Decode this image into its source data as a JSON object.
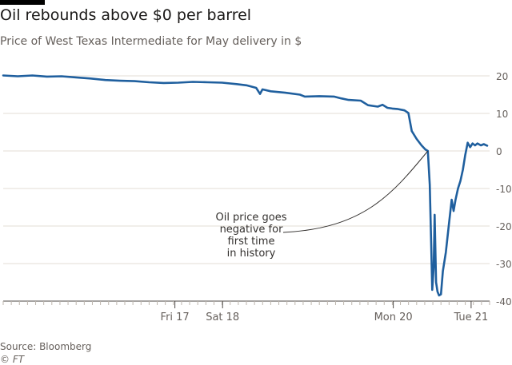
{
  "header": {
    "title": "Oil rebounds above $0 per barrel",
    "subtitle": "Price of West Texas Intermediate for May delivery in $"
  },
  "footer": {
    "source": "Source: Bloomberg",
    "copyright": "© FT"
  },
  "colors": {
    "line": "#1f5f9e",
    "grid": "#e3ddd6",
    "text": "#66605c",
    "annotation": "#33302e"
  },
  "chart_data": {
    "type": "line",
    "title": "Oil rebounds above $0 per barrel",
    "subtitle": "Price of West Texas Intermediate for May delivery in $",
    "ylim": [
      -40,
      20
    ],
    "yticks": [
      20,
      10,
      0,
      -10,
      -20,
      -30,
      -40
    ],
    "y_axis_side": "right",
    "grid": true,
    "xlim": [
      0,
      100
    ],
    "x_tick_labels": [
      {
        "x": 35.3,
        "label": "Fri 17"
      },
      {
        "x": 45.1,
        "label": "Sat 18"
      },
      {
        "x": 80.2,
        "label": "Mon 20"
      },
      {
        "x": 96.2,
        "label": "Tue 21"
      }
    ],
    "annotation": {
      "text": [
        "Oil price goes",
        "negative for",
        "first time",
        "in history"
      ],
      "points_to": {
        "x": 87.3,
        "y": 0
      }
    },
    "series": [
      {
        "values": [
          [
            0,
            20.1
          ],
          [
            3,
            19.9
          ],
          [
            6,
            20.1
          ],
          [
            9,
            19.8
          ],
          [
            12,
            19.9
          ],
          [
            15,
            19.6
          ],
          [
            18,
            19.3
          ],
          [
            21,
            18.9
          ],
          [
            24,
            18.7
          ],
          [
            27,
            18.6
          ],
          [
            30,
            18.3
          ],
          [
            33,
            18.1
          ],
          [
            36,
            18.2
          ],
          [
            39,
            18.4
          ],
          [
            42,
            18.3
          ],
          [
            45,
            18.2
          ],
          [
            48,
            17.8
          ],
          [
            50,
            17.5
          ],
          [
            52,
            16.8
          ],
          [
            52.8,
            15.2
          ],
          [
            53.3,
            16.4
          ],
          [
            55,
            15.9
          ],
          [
            58,
            15.5
          ],
          [
            61,
            15.0
          ],
          [
            62,
            14.5
          ],
          [
            65,
            14.6
          ],
          [
            68,
            14.5
          ],
          [
            69.5,
            14.0
          ],
          [
            71,
            13.6
          ],
          [
            73.5,
            13.4
          ],
          [
            75,
            12.2
          ],
          [
            76,
            12.0
          ],
          [
            77,
            11.8
          ],
          [
            78,
            12.3
          ],
          [
            79,
            11.5
          ],
          [
            80,
            11.3
          ],
          [
            81,
            11.2
          ],
          [
            82.5,
            10.8
          ],
          [
            83.3,
            10.1
          ],
          [
            84,
            5.3
          ],
          [
            85,
            3.2
          ],
          [
            86,
            1.5
          ],
          [
            86.8,
            0.4
          ],
          [
            87.3,
            0.0
          ],
          [
            87.7,
            -9.0
          ],
          [
            88.0,
            -25.0
          ],
          [
            88.2,
            -37.0
          ],
          [
            88.5,
            -31.0
          ],
          [
            88.7,
            -17.0
          ],
          [
            89.0,
            -35.0
          ],
          [
            89.3,
            -37.5
          ],
          [
            89.6,
            -38.5
          ],
          [
            90.0,
            -38.2
          ],
          [
            90.4,
            -32.0
          ],
          [
            91.0,
            -27.0
          ],
          [
            91.6,
            -20.0
          ],
          [
            92.2,
            -13.0
          ],
          [
            92.6,
            -16.0
          ],
          [
            93.0,
            -13.0
          ],
          [
            93.5,
            -10.0
          ],
          [
            94.0,
            -8.0
          ],
          [
            94.5,
            -5.0
          ],
          [
            95.0,
            -1.0
          ],
          [
            95.5,
            2.2
          ],
          [
            96.0,
            1.0
          ],
          [
            96.5,
            2.0
          ],
          [
            97.0,
            1.5
          ],
          [
            97.5,
            2.0
          ],
          [
            98.2,
            1.5
          ],
          [
            98.8,
            1.8
          ],
          [
            99.5,
            1.4
          ]
        ]
      }
    ]
  }
}
